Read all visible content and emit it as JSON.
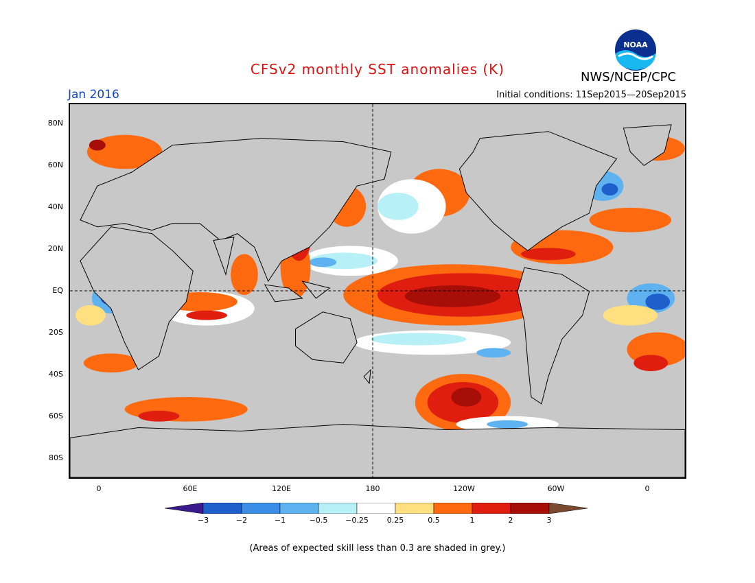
{
  "title": "CFSv2 monthly SST anomalies (K)",
  "agency": "NWS/NCEP/CPC",
  "logo_text": "NOAA",
  "valid_period": "Jan 2016",
  "initial_conditions": "Initial conditions: 11Sep2015—20Sep2015",
  "footnote": "(Areas of expected skill less than 0.3 are shaded in grey.)",
  "map": {
    "lat_labels": [
      "80N",
      "60N",
      "40N",
      "20N",
      "EQ",
      "20S",
      "40S",
      "60S",
      "80S"
    ],
    "lon_labels": [
      "0",
      "60E",
      "120E",
      "180",
      "120W",
      "60W",
      "0"
    ],
    "land_color": "#c8c8c8",
    "ocean_color": "#ffffff",
    "coast_color": "#000000"
  },
  "colorbar": {
    "labels": [
      "−3",
      "−2",
      "−1",
      "−0.5",
      "−0.25",
      "0.25",
      "0.5",
      "1",
      "2",
      "3"
    ],
    "colors": [
      "#3a1a8c",
      "#1f5fcc",
      "#3b8de6",
      "#5fb2f0",
      "#b7f0f7",
      "#ffffff",
      "#ffe080",
      "#ff6a10",
      "#e01e10",
      "#a80e08",
      "#7a4a30"
    ]
  }
}
